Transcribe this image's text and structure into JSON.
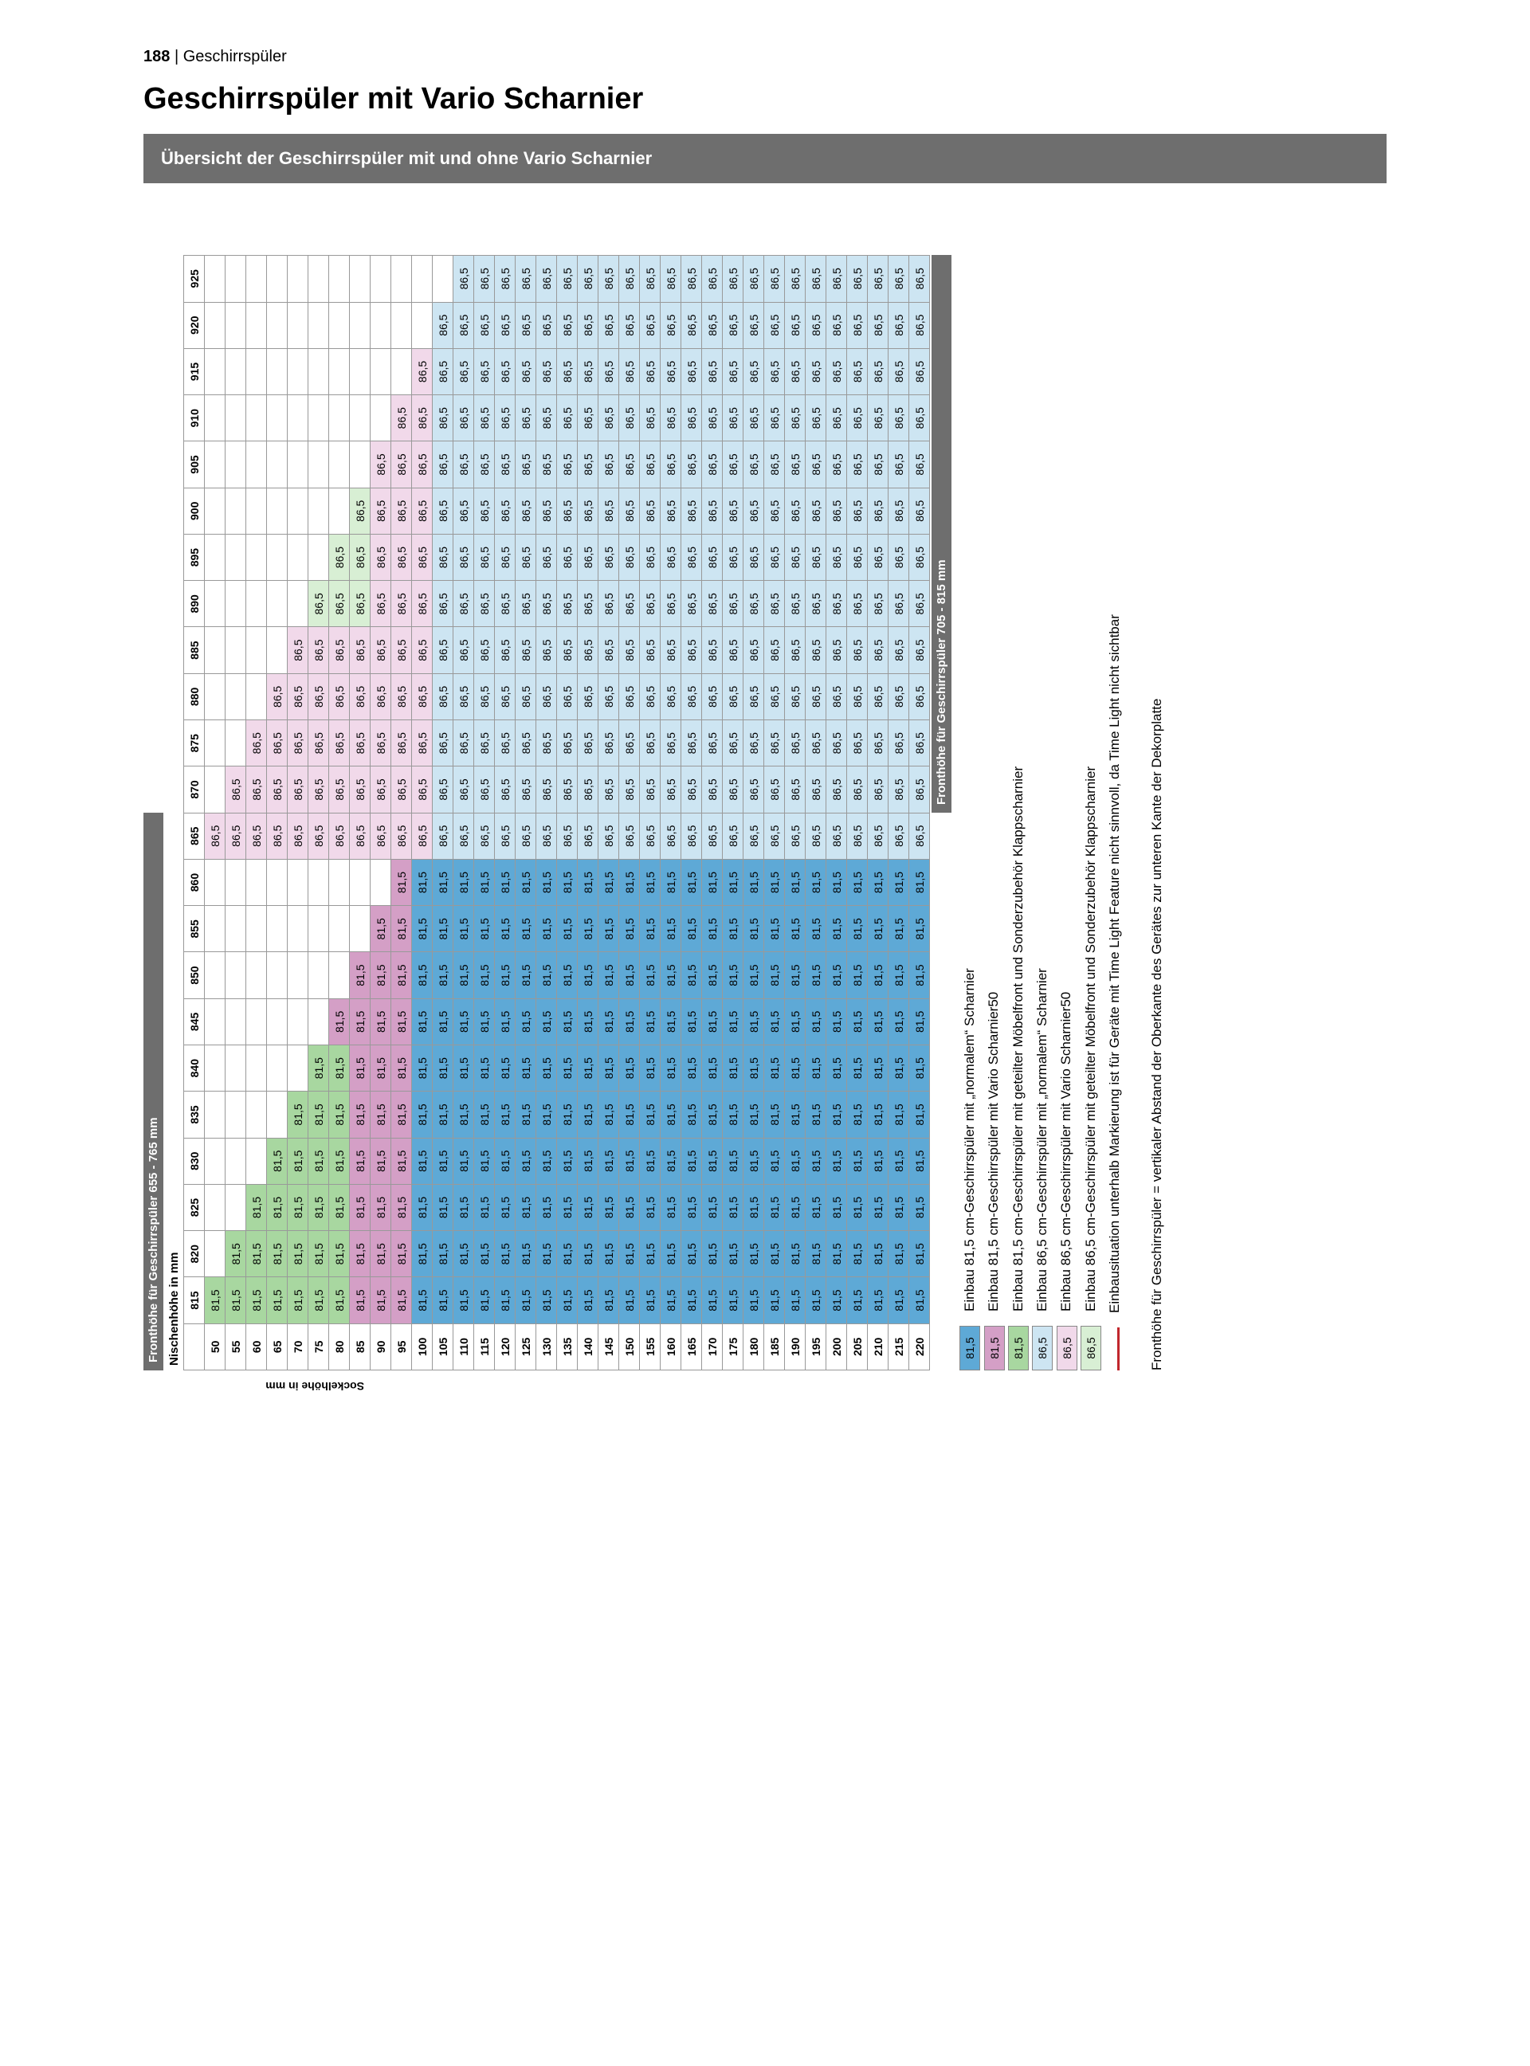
{
  "pageNumber": "188",
  "pageSection": "Geschirrspüler",
  "title": "Geschirrspüler mit Vario Scharnier",
  "subtitle": "Übersicht der Geschirrspüler mit und ohne Vario Scharnier",
  "barLabel655": "Fronthöhe für Geschirrspüler 655 - 765 mm",
  "barLabel705": "Fronthöhe für Geschirrspüler 705 - 815 mm",
  "nischLabel": "Nischenhöhe in mm",
  "sockelLabel": "Sockelhöhe in mm",
  "nischStart": 815,
  "nischEnd": 925,
  "nischStep": 5,
  "sockelStart": 50,
  "sockelEnd": 220,
  "sockelStep": 5,
  "valueA": "81,5",
  "valueB": "86,5",
  "colors": {
    "normal815": "#5ea9d6",
    "vario815": "#d49fc6",
    "split815": "#a8d7a0",
    "normal865": "#cde5f2",
    "vario865": "#f1d9ea",
    "split865": "#d8efd4",
    "empty": "#ffffff",
    "border": "#7a7a7a"
  },
  "legend": [
    {
      "swatchText": "81,5",
      "colorKey": "normal815",
      "text": "Einbau 81,5 cm-Geschirrspüler mit „normalem“ Scharnier"
    },
    {
      "swatchText": "81,5",
      "colorKey": "vario815",
      "text": "Einbau 81,5 cm-Geschirrspüler mit Vario Scharnier50"
    },
    {
      "swatchText": "81,5",
      "colorKey": "split815",
      "text": "Einbau 81,5 cm-Geschirrspüler mit geteilter Möbelfront und Sonderzubehör Klappscharnier"
    },
    {
      "swatchText": "86,5",
      "colorKey": "normal865",
      "text": "Einbau 86,5 cm-Geschirrspüler mit „normalem“ Scharnier"
    },
    {
      "swatchText": "86,5",
      "colorKey": "vario865",
      "text": "Einbau 86,5 cm-Geschirrspüler mit Vario Scharnier50"
    },
    {
      "swatchText": "86,5",
      "colorKey": "split865",
      "text": "Einbau 86,5 cm-Geschirrspüler mit geteilter Möbelfront und Sonderzubehör Klappscharnier"
    },
    {
      "swatchText": "",
      "colorKey": "redline",
      "text": "Einbausituation unterhalb Markierung ist für Geräte mit Time Light Feature nicht sinnvoll, da Time Light nicht sichtbar"
    }
  ],
  "footnote": "Fronthöhe für Geschirrspüler = vertikaler Abstand der Oberkante des Gerätes zur unteren Kante der Dekorplatte"
}
